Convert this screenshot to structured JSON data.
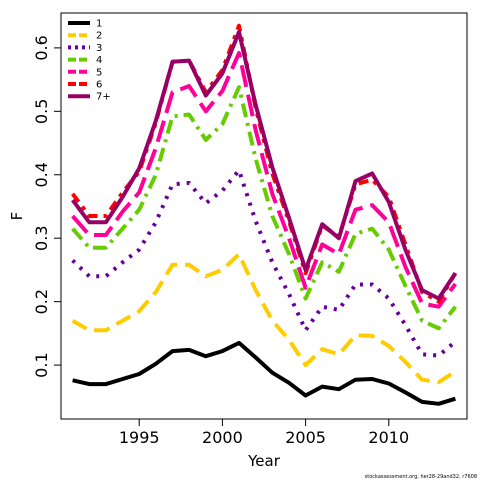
{
  "chart_data": {
    "type": "line",
    "xlabel": "Year",
    "ylabel": "F",
    "xlim": [
      1990.3,
      2014.7
    ],
    "ylim": [
      0.015,
      0.655
    ],
    "x_ticks": [
      "1995",
      "2000",
      "2005",
      "2010"
    ],
    "y_ticks": [
      "0.1",
      "0.2",
      "0.3",
      "0.4",
      "0.5",
      "0.6"
    ],
    "grid": false,
    "legend_position": "top-left",
    "credit": "stockassessment.org, her28-29and32, r7608",
    "x": [
      1991,
      1992,
      1993,
      1994,
      1995,
      1996,
      1997,
      1998,
      1999,
      2000,
      2001,
      2002,
      2003,
      2004,
      2005,
      2006,
      2007,
      2008,
      2009,
      2010,
      2011,
      2012,
      2013,
      2014
    ],
    "series": [
      {
        "name": "1",
        "color": "#000000",
        "dash": "solid",
        "values": [
          0.076,
          0.07,
          0.07,
          0.078,
          0.086,
          0.102,
          0.122,
          0.124,
          0.114,
          0.122,
          0.135,
          0.112,
          0.088,
          0.072,
          0.052,
          0.066,
          0.062,
          0.077,
          0.078,
          0.071,
          0.057,
          0.042,
          0.039,
          0.047
        ]
      },
      {
        "name": "2",
        "color": "#ffcc00",
        "dash": "long",
        "values": [
          0.17,
          0.155,
          0.155,
          0.17,
          0.185,
          0.215,
          0.258,
          0.258,
          0.24,
          0.25,
          0.275,
          0.218,
          0.17,
          0.14,
          0.1,
          0.125,
          0.117,
          0.147,
          0.146,
          0.13,
          0.105,
          0.077,
          0.073,
          0.09
        ]
      },
      {
        "name": "3",
        "color": "#660099",
        "dash": "dot",
        "values": [
          0.265,
          0.24,
          0.24,
          0.262,
          0.282,
          0.325,
          0.385,
          0.387,
          0.355,
          0.375,
          0.407,
          0.327,
          0.262,
          0.212,
          0.155,
          0.192,
          0.187,
          0.227,
          0.227,
          0.205,
          0.163,
          0.117,
          0.115,
          0.137
        ]
      },
      {
        "name": "4",
        "color": "#66cc00",
        "dash": "dashdot",
        "values": [
          0.315,
          0.285,
          0.285,
          0.315,
          0.345,
          0.4,
          0.492,
          0.495,
          0.455,
          0.48,
          0.538,
          0.425,
          0.335,
          0.275,
          0.205,
          0.262,
          0.247,
          0.307,
          0.315,
          0.282,
          0.225,
          0.17,
          0.158,
          0.192
        ]
      },
      {
        "name": "5",
        "color": "#ff0099",
        "dash": "longdash",
        "values": [
          0.335,
          0.305,
          0.305,
          0.342,
          0.372,
          0.442,
          0.53,
          0.54,
          0.5,
          0.532,
          0.592,
          0.47,
          0.37,
          0.3,
          0.222,
          0.29,
          0.275,
          0.345,
          0.352,
          0.325,
          0.255,
          0.197,
          0.192,
          0.228
        ]
      },
      {
        "name": "6",
        "color": "#ff0000",
        "dash": "twodash",
        "values": [
          0.37,
          0.335,
          0.335,
          0.372,
          0.405,
          0.482,
          0.578,
          0.58,
          0.53,
          0.565,
          0.635,
          0.505,
          0.402,
          0.327,
          0.245,
          0.32,
          0.302,
          0.385,
          0.392,
          0.365,
          0.29,
          0.215,
          0.2,
          0.245
        ]
      },
      {
        "name": "7+",
        "color": "#990066",
        "dash": "solid",
        "values": [
          0.36,
          0.325,
          0.325,
          0.365,
          0.41,
          0.485,
          0.578,
          0.58,
          0.525,
          0.56,
          0.625,
          0.51,
          0.412,
          0.332,
          0.25,
          0.322,
          0.3,
          0.39,
          0.402,
          0.357,
          0.282,
          0.218,
          0.205,
          0.245
        ]
      }
    ]
  }
}
